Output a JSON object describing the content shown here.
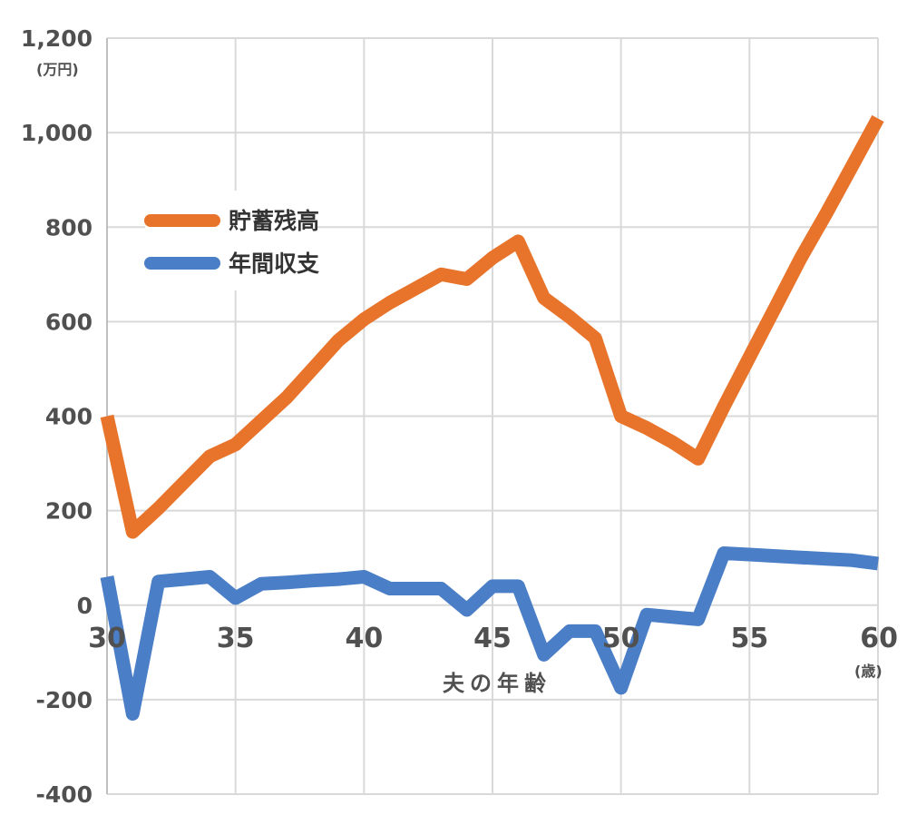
{
  "chart_data": {
    "type": "line",
    "x": [
      30,
      31,
      32,
      33,
      34,
      35,
      36,
      37,
      38,
      39,
      40,
      41,
      42,
      43,
      44,
      45,
      46,
      47,
      48,
      49,
      50,
      51,
      52,
      53,
      54,
      55,
      56,
      57,
      58,
      59,
      60
    ],
    "series": [
      {
        "name": "貯蓄残高",
        "color": "#e8732a",
        "values": [
          400,
          155,
          205,
          260,
          315,
          340,
          390,
          440,
          500,
          560,
          605,
          640,
          670,
          700,
          690,
          735,
          770,
          650,
          610,
          565,
          400,
          375,
          345,
          310,
          420,
          525,
          630,
          735,
          830,
          930,
          1030
        ]
      },
      {
        "name": "年間収支",
        "color": "#4a7ec6",
        "values": [
          60,
          -230,
          50,
          55,
          60,
          15,
          45,
          48,
          52,
          55,
          60,
          35,
          35,
          35,
          -10,
          40,
          40,
          -105,
          -55,
          -55,
          -175,
          -20,
          -25,
          -30,
          110,
          107,
          104,
          101,
          98,
          95,
          88
        ]
      }
    ],
    "xlim": [
      30,
      60
    ],
    "ylim": [
      -400,
      1200
    ],
    "xticks": [
      30,
      35,
      40,
      45,
      50,
      55,
      60
    ],
    "yticks": [
      -400,
      -200,
      0,
      200,
      400,
      600,
      800,
      1000,
      1200
    ],
    "ytick_labels": [
      "-400",
      "-200",
      "0",
      "200",
      "400",
      "600",
      "800",
      "1,000",
      "1,200"
    ],
    "xtick_labels": [
      "30",
      "35",
      "40",
      "45",
      "50",
      "55",
      "60"
    ],
    "ylabel_unit": "(万円)",
    "xlabel_unit": "(歳)",
    "xlabel": "夫の年齢",
    "grid": true,
    "legend_position": "upper-left"
  }
}
